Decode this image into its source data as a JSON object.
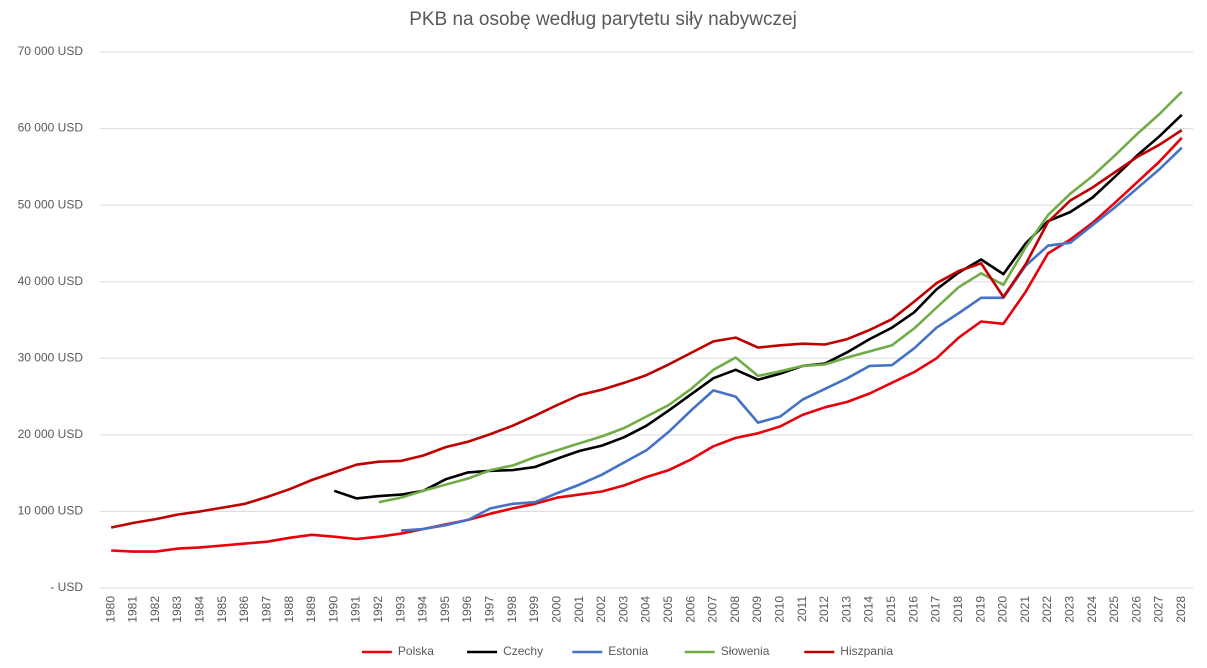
{
  "chart_data": {
    "type": "line",
    "title": "PKB na osobę według parytetu siły nabywczej",
    "categories": [
      "1980",
      "1981",
      "1982",
      "1983",
      "1984",
      "1985",
      "1986",
      "1987",
      "1988",
      "1989",
      "1990",
      "1991",
      "1992",
      "1993",
      "1994",
      "1995",
      "1996",
      "1997",
      "1998",
      "1999",
      "2000",
      "2001",
      "2002",
      "2003",
      "2004",
      "2005",
      "2006",
      "2007",
      "2008",
      "2009",
      "2010",
      "2011",
      "2012",
      "2013",
      "2014",
      "2015",
      "2016",
      "2017",
      "2018",
      "2019",
      "2020",
      "2021",
      "2022",
      "2023",
      "2024",
      "2025",
      "2026",
      "2027",
      "2028"
    ],
    "series": [
      {
        "name": "Polska",
        "color": "#e8000b",
        "values": [
          4900,
          4750,
          4750,
          5150,
          5300,
          5550,
          5800,
          6050,
          6550,
          6950,
          6700,
          6400,
          6700,
          7100,
          7700,
          8300,
          8900,
          9700,
          10400,
          11000,
          11800,
          12200,
          12600,
          13400,
          14500,
          15400,
          16800,
          18500,
          19600,
          20200,
          21100,
          22600,
          23600,
          24300,
          25400,
          26800,
          28200,
          30000,
          32700,
          34800,
          34500,
          38700,
          43700,
          45500,
          47700,
          50300,
          53000,
          55700,
          58800
        ]
      },
      {
        "name": "Czechy",
        "color": "#000000",
        "values": [
          null,
          null,
          null,
          null,
          null,
          null,
          null,
          null,
          null,
          null,
          12700,
          11700,
          12000,
          12200,
          12700,
          14200,
          15100,
          15300,
          15400,
          15800,
          16900,
          17900,
          18600,
          19700,
          21200,
          23200,
          25300,
          27400,
          28500,
          27200,
          28000,
          29000,
          29300,
          30800,
          32500,
          34000,
          36000,
          39000,
          41200,
          42900,
          41000,
          45000,
          47900,
          49100,
          51000,
          53700,
          56500,
          59000,
          61800
        ]
      },
      {
        "name": "Estonia",
        "color": "#4472c4",
        "values": [
          null,
          null,
          null,
          null,
          null,
          null,
          null,
          null,
          null,
          null,
          null,
          null,
          null,
          7500,
          7700,
          8200,
          8900,
          10400,
          11000,
          11200,
          12400,
          13500,
          14800,
          16400,
          18000,
          20400,
          23200,
          25800,
          25000,
          21600,
          22400,
          24600,
          26000,
          27400,
          29000,
          29100,
          31300,
          34000,
          35900,
          37900,
          37900,
          42100,
          44700,
          45100,
          47400,
          49700,
          52200,
          54700,
          57500
        ]
      },
      {
        "name": "Słowenia",
        "color": "#70ad47",
        "values": [
          null,
          null,
          null,
          null,
          null,
          null,
          null,
          null,
          null,
          null,
          null,
          null,
          11200,
          11800,
          12700,
          13500,
          14300,
          15400,
          16000,
          17100,
          18000,
          18900,
          19800,
          20900,
          22400,
          23900,
          26000,
          28500,
          30100,
          27700,
          28300,
          29000,
          29200,
          30100,
          30900,
          31700,
          33900,
          36600,
          39300,
          41100,
          39600,
          44500,
          48700,
          51500,
          53800,
          56500,
          59300,
          61900,
          64800
        ]
      },
      {
        "name": "Hiszpania",
        "color": "#c00000",
        "values": [
          7900,
          8500,
          9000,
          9600,
          10000,
          10500,
          11000,
          11900,
          12900,
          14100,
          15100,
          16100,
          16500,
          16600,
          17300,
          18400,
          19100,
          20100,
          21200,
          22500,
          23900,
          25200,
          25900,
          26800,
          27800,
          29200,
          30700,
          32200,
          32700,
          31400,
          31700,
          31900,
          31800,
          32500,
          33700,
          35100,
          37400,
          39800,
          41400,
          42400,
          38000,
          42300,
          47800,
          50600,
          52300,
          54300,
          56300,
          57900,
          59800
        ]
      }
    ],
    "ylim": [
      0,
      70000
    ],
    "yticks": [
      {
        "value": 0,
        "label": "- USD"
      },
      {
        "value": 10000,
        "label": "10 000 USD"
      },
      {
        "value": 20000,
        "label": "20 000 USD"
      },
      {
        "value": 30000,
        "label": "30 000 USD"
      },
      {
        "value": 40000,
        "label": "40 000 USD"
      },
      {
        "value": 50000,
        "label": "50 000 USD"
      },
      {
        "value": 60000,
        "label": "60 000 USD"
      },
      {
        "value": 70000,
        "label": "70 000 USD"
      }
    ],
    "grid": true,
    "legend": "bottom"
  }
}
